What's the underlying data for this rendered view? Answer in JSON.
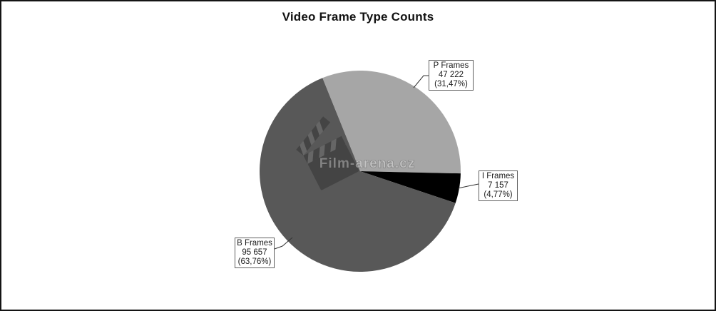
{
  "page": {
    "background": "#ffffff",
    "border_color": "#141414"
  },
  "title": "Video Frame Type Counts",
  "watermark": {
    "text": "Film-arena.cz",
    "icon": "clapperboard-icon"
  },
  "chart_data": {
    "type": "pie",
    "title": "Video Frame Type Counts",
    "start_angle_deg": -22,
    "direction": "clockwise",
    "legend_position": "none",
    "labels_style": "boxed-callouts-with-leader-lines",
    "slices": [
      {
        "label": "P Frames",
        "count": 47222,
        "value_label": "47 222",
        "pct": 31.47,
        "pct_label": "(31,47%)",
        "color": "#a6a6a6"
      },
      {
        "label": "I Frames",
        "count": 7157,
        "value_label": "7 157",
        "pct": 4.77,
        "pct_label": "(4,77%)",
        "color": "#000000"
      },
      {
        "label": "B Frames",
        "count": 95657,
        "value_label": "95 657",
        "pct": 63.76,
        "pct_label": "(63,76%)",
        "color": "#585858"
      }
    ]
  }
}
